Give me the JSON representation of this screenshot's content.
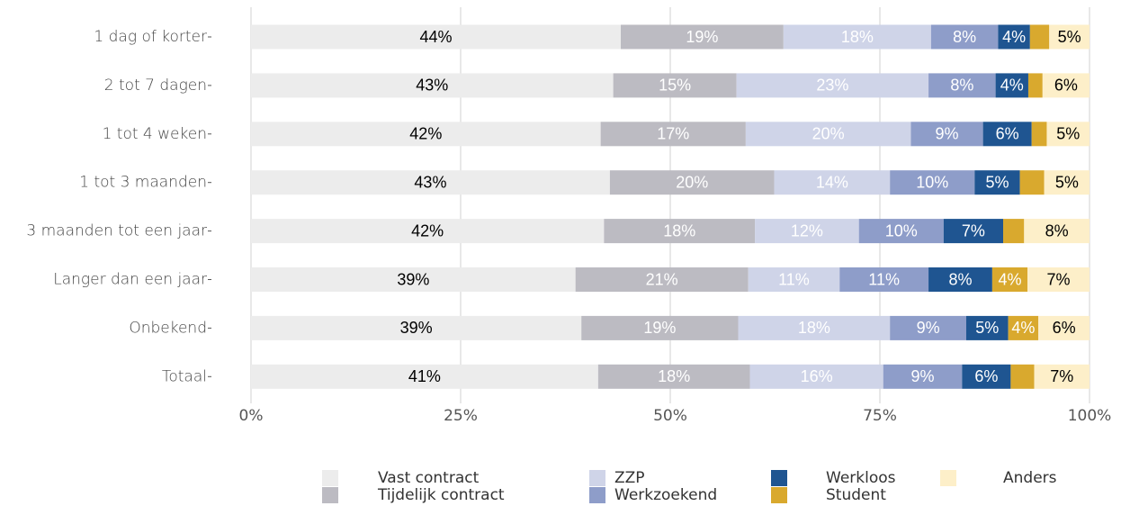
{
  "chart_data": {
    "type": "stacked_barh",
    "categories": [
      "1 dag of korter",
      "2 tot 7 dagen",
      "1 tot 4 weken",
      "1 tot 3 maanden",
      "3 maanden tot een jaar",
      "Langer dan een jaar",
      "Onbekend",
      "Totaal"
    ],
    "series": [
      {
        "name": "Vast contract",
        "color": "#ececec",
        "label_color": "#000000",
        "values": [
          44.1,
          43.2,
          41.7,
          42.8,
          42.1,
          38.7,
          39.4,
          41.4
        ],
        "value_labels": [
          "44%",
          "43%",
          "42%",
          "43%",
          "42%",
          "39%",
          "39%",
          "41%"
        ]
      },
      {
        "name": "Tijdelijk contract",
        "color": "#bcbbc2",
        "label_color": "#ffffff",
        "values": [
          19.4,
          14.7,
          17.3,
          19.6,
          18.0,
          20.6,
          18.7,
          18.1
        ],
        "value_labels": [
          "19%",
          "15%",
          "17%",
          "20%",
          "18%",
          "21%",
          "19%",
          "18%"
        ]
      },
      {
        "name": "ZZP",
        "color": "#cfd4e8",
        "label_color": "#ffffff",
        "values": [
          17.6,
          22.9,
          19.7,
          13.8,
          12.4,
          10.9,
          18.1,
          15.9
        ],
        "value_labels": [
          "18%",
          "23%",
          "20%",
          "14%",
          "12%",
          "11%",
          "18%",
          "16%"
        ]
      },
      {
        "name": "Werkzoekend",
        "color": "#8e9dc9",
        "label_color": "#ffffff",
        "values": [
          8.0,
          8.0,
          8.6,
          10.1,
          10.1,
          10.6,
          9.1,
          9.4
        ],
        "value_labels": [
          "8%",
          "8%",
          "9%",
          "10%",
          "10%",
          "11%",
          "9%",
          "9%"
        ]
      },
      {
        "name": "Werkloos",
        "color": "#1f5591",
        "label_color": "#ffffff",
        "values": [
          3.8,
          3.9,
          5.8,
          5.4,
          7.1,
          7.6,
          5.0,
          5.8
        ],
        "value_labels": [
          "4%",
          "4%",
          "6%",
          "5%",
          "7%",
          "8%",
          "5%",
          "6%"
        ]
      },
      {
        "name": "Student",
        "color": "#d9a92e",
        "label_color": "#ffffff",
        "values": [
          2.3,
          1.7,
          1.8,
          2.9,
          2.5,
          4.2,
          3.6,
          2.8
        ],
        "value_labels": [
          null,
          null,
          null,
          null,
          null,
          "4%",
          "4%",
          null
        ]
      },
      {
        "name": "Anders",
        "color": "#fdefc9",
        "label_color": "#000000",
        "values": [
          4.8,
          5.6,
          5.1,
          5.4,
          7.8,
          7.4,
          6.1,
          6.6
        ],
        "value_labels": [
          "5%",
          "6%",
          "5%",
          "5%",
          "8%",
          "7%",
          "6%",
          "7%"
        ]
      }
    ],
    "xlim": [
      0,
      100
    ],
    "xticks": [
      {
        "value": 0,
        "label": "0%"
      },
      {
        "value": 25,
        "label": "25%"
      },
      {
        "value": 50,
        "label": "50%"
      },
      {
        "value": 75,
        "label": "75%"
      },
      {
        "value": 100,
        "label": "100%"
      }
    ],
    "grid": true,
    "legend": "bottom"
  }
}
